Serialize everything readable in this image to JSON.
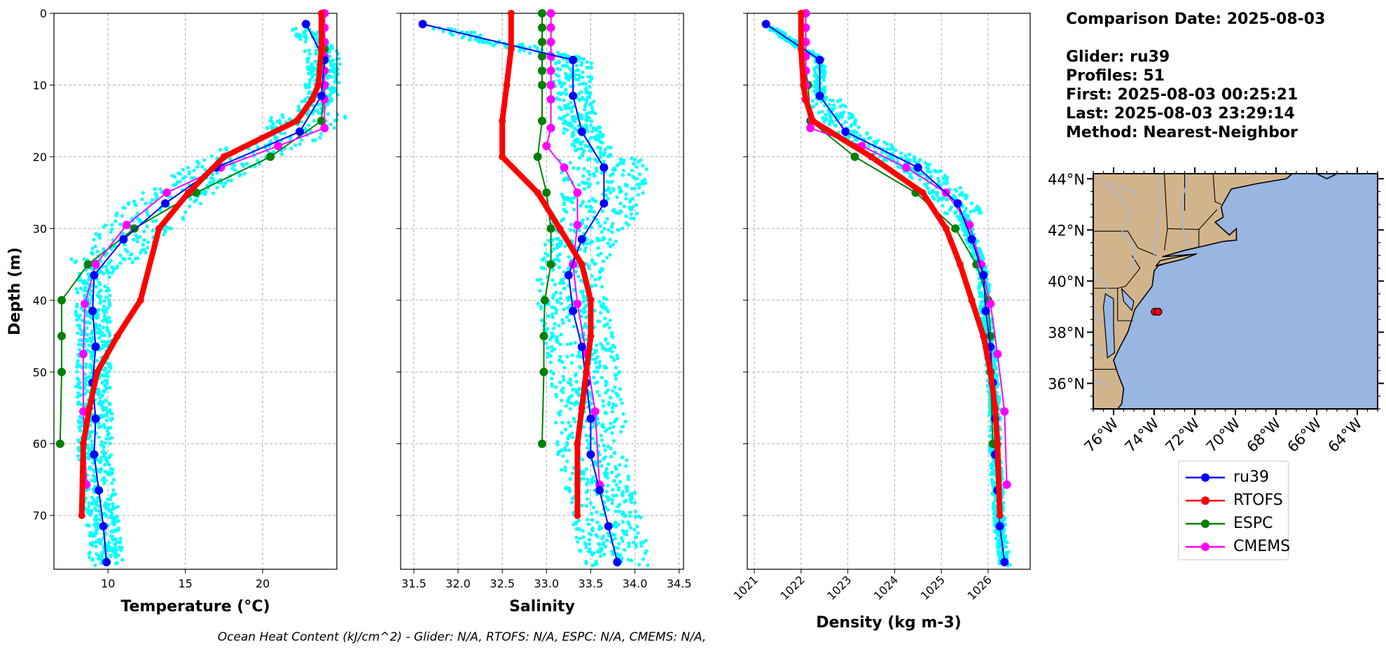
{
  "info": {
    "date_line": "Comparison Date: 2025-08-03",
    "glider_line": "Glider: ru39",
    "profiles_line": "Profiles: 51",
    "first_line": "First: 2025-08-03 00:25:21",
    "last_line": "Last: 2025-08-03 23:29:14",
    "method_line": "Method: Nearest-Neighbor"
  },
  "footer": "Ocean Heat Content (kJ/cm^2) - Glider: N/A,  RTOFS: N/A,  ESPC: N/A,  CMEMS: N/A,",
  "colors": {
    "ru39": "#0000ff",
    "RTOFS": "#ff0000",
    "ESPC": "#008000",
    "CMEMS": "#ff00ff",
    "raw": "#00ffff",
    "land": "#d2b48c",
    "ocean": "#98b6e2"
  },
  "legend": [
    "ru39",
    "RTOFS",
    "ESPC",
    "CMEMS"
  ],
  "map": {
    "lat_labels": [
      "44°N",
      "42°N",
      "40°N",
      "38°N",
      "36°N"
    ],
    "lat_values": [
      44,
      42,
      40,
      38,
      36
    ],
    "lon_labels": [
      "76°W",
      "74°W",
      "72°W",
      "70°W",
      "68°W",
      "66°W",
      "64°W"
    ],
    "lon_values": [
      -76,
      -74,
      -72,
      -70,
      -68,
      -66,
      -64
    ],
    "lon_range": [
      -77,
      -63
    ],
    "lat_range": [
      35,
      44.2
    ],
    "glider_position": [
      -73.9,
      38.8
    ]
  },
  "chart_data": [
    {
      "type": "line",
      "xlabel": "Temperature (°C)",
      "ylabel": "Depth (m)",
      "xlim": [
        6.5,
        24.8
      ],
      "ylim": [
        77.5,
        0
      ],
      "xticks": [
        10,
        15,
        20
      ],
      "yticks": [
        0,
        10,
        20,
        30,
        40,
        50,
        60,
        70
      ],
      "series": [
        {
          "name": "ru39",
          "depth": [
            1.5,
            6.5,
            11.5,
            16.5,
            21.5,
            26.5,
            31.5,
            36.5,
            41.5,
            46.5,
            51.5,
            56.5,
            61.5,
            66.5,
            71.5,
            76.5
          ],
          "values": [
            22.8,
            24.0,
            23.8,
            22.4,
            17.0,
            13.7,
            11.0,
            9.1,
            9.0,
            9.2,
            9.0,
            9.2,
            9.1,
            9.4,
            9.7,
            9.9
          ]
        },
        {
          "name": "RTOFS",
          "depth": [
            0,
            5,
            10,
            12,
            15,
            20,
            25,
            30,
            40,
            45,
            50,
            55,
            60,
            70
          ],
          "values": [
            23.8,
            23.8,
            23.6,
            23.2,
            22.2,
            17.5,
            15.2,
            13.3,
            12.1,
            10.6,
            9.3,
            8.8,
            8.4,
            8.3
          ]
        },
        {
          "name": "ESPC",
          "depth": [
            0,
            5,
            10,
            15,
            20,
            25,
            30,
            35,
            40,
            45,
            50,
            60
          ],
          "values": [
            24.0,
            24.0,
            24.0,
            23.8,
            20.5,
            15.7,
            11.7,
            8.7,
            7.0,
            7.0,
            7.0,
            6.9
          ]
        },
        {
          "name": "CMEMS",
          "depth": [
            0,
            2,
            4,
            6,
            8,
            10,
            12,
            16,
            18.5,
            21.5,
            25,
            29.5,
            35,
            40.5,
            47.5,
            55.5,
            65.7
          ],
          "values": [
            24.0,
            24.0,
            24.0,
            24.0,
            24.0,
            24.0,
            24.0,
            24.0,
            21.0,
            17.3,
            13.8,
            11.2,
            9.2,
            8.5,
            8.4,
            8.4,
            8.6
          ]
        }
      ]
    },
    {
      "type": "line",
      "xlabel": "Salinity",
      "xlim": [
        31.35,
        34.55
      ],
      "ylim": [
        77.5,
        0
      ],
      "xticks": [
        31.5,
        32.0,
        32.5,
        33.0,
        33.5,
        34.0,
        34.5
      ],
      "xtick_labels": [
        "31.5",
        "32.0",
        "32.5",
        "33.0",
        "33.5",
        "34.0",
        "34.5"
      ],
      "yticks": [
        0,
        10,
        20,
        30,
        40,
        50,
        60,
        70
      ],
      "series": [
        {
          "name": "ru39",
          "depth": [
            1.5,
            6.5,
            11.5,
            16.5,
            21.5,
            26.5,
            31.5,
            36.5,
            41.5,
            46.5,
            51.5,
            56.5,
            61.5,
            66.5,
            71.5,
            76.5
          ],
          "values": [
            31.6,
            33.3,
            33.3,
            33.4,
            33.65,
            33.65,
            33.4,
            33.25,
            33.3,
            33.4,
            33.45,
            33.5,
            33.5,
            33.6,
            33.7,
            33.8
          ]
        },
        {
          "name": "RTOFS",
          "depth": [
            0,
            5,
            10,
            15,
            20,
            25,
            30,
            35,
            40,
            45,
            50,
            55,
            60,
            70
          ],
          "values": [
            32.6,
            32.6,
            32.55,
            32.5,
            32.5,
            32.9,
            33.15,
            33.4,
            33.5,
            33.5,
            33.45,
            33.4,
            33.35,
            33.35
          ]
        },
        {
          "name": "ESPC",
          "depth": [
            0,
            2,
            4,
            6,
            8,
            10,
            15,
            20,
            25,
            30,
            35,
            40,
            45,
            50,
            60
          ],
          "values": [
            32.95,
            32.95,
            32.95,
            32.95,
            32.95,
            32.95,
            32.95,
            32.9,
            33.0,
            33.05,
            33.05,
            32.98,
            32.97,
            32.97,
            32.95
          ]
        },
        {
          "name": "CMEMS",
          "depth": [
            0,
            2,
            4,
            6,
            8,
            10,
            12,
            16,
            18.5,
            21.5,
            25,
            29.5,
            35,
            40.5,
            47.5,
            55.5,
            65.7
          ],
          "values": [
            33.05,
            33.05,
            33.05,
            33.05,
            33.05,
            33.05,
            33.05,
            33.05,
            33.0,
            33.2,
            33.35,
            33.35,
            33.3,
            33.35,
            33.45,
            33.55,
            33.6
          ]
        }
      ]
    },
    {
      "type": "line",
      "xlabel": "Density (kg m-3)",
      "xlim": [
        1020.85,
        1026.9
      ],
      "ylim": [
        77.5,
        0
      ],
      "xticks": [
        1021,
        1022,
        1023,
        1024,
        1025,
        1026
      ],
      "yticks": [
        0,
        10,
        20,
        30,
        40,
        50,
        60,
        70
      ],
      "series": [
        {
          "name": "ru39",
          "depth": [
            1.5,
            6.5,
            11.5,
            16.5,
            21.5,
            26.5,
            31.5,
            36.5,
            41.5,
            46.5,
            51.5,
            56.5,
            61.5,
            66.5,
            71.5,
            76.5
          ],
          "values": [
            1021.25,
            1022.4,
            1022.4,
            1022.95,
            1024.5,
            1025.35,
            1025.65,
            1025.9,
            1025.95,
            1026.05,
            1026.1,
            1026.15,
            1026.15,
            1026.2,
            1026.25,
            1026.35
          ]
        },
        {
          "name": "RTOFS",
          "depth": [
            0,
            5,
            10,
            12,
            15,
            20,
            25,
            30,
            35,
            40,
            45,
            50,
            55,
            60,
            70
          ],
          "values": [
            1022.0,
            1022.0,
            1022.05,
            1022.1,
            1022.25,
            1023.5,
            1024.6,
            1025.1,
            1025.4,
            1025.65,
            1025.9,
            1026.05,
            1026.15,
            1026.2,
            1026.25
          ]
        },
        {
          "name": "ESPC",
          "depth": [
            0,
            2,
            4,
            6,
            8,
            10,
            15,
            20,
            25,
            30,
            35,
            40,
            45,
            50,
            60
          ],
          "values": [
            1022.1,
            1022.1,
            1022.1,
            1022.1,
            1022.1,
            1022.15,
            1022.2,
            1023.15,
            1024.45,
            1025.3,
            1025.75,
            1026.0,
            1026.05,
            1026.05,
            1026.1
          ]
        },
        {
          "name": "CMEMS",
          "depth": [
            0,
            2,
            4,
            6,
            8,
            10,
            12,
            16,
            18.5,
            21.5,
            25,
            29.5,
            35,
            40.5,
            47.5,
            55.5,
            65.7
          ],
          "values": [
            1022.1,
            1022.1,
            1022.1,
            1022.1,
            1022.1,
            1022.1,
            1022.1,
            1022.2,
            1023.3,
            1024.25,
            1025.1,
            1025.6,
            1025.85,
            1026.05,
            1026.2,
            1026.35,
            1026.4
          ]
        }
      ]
    }
  ]
}
